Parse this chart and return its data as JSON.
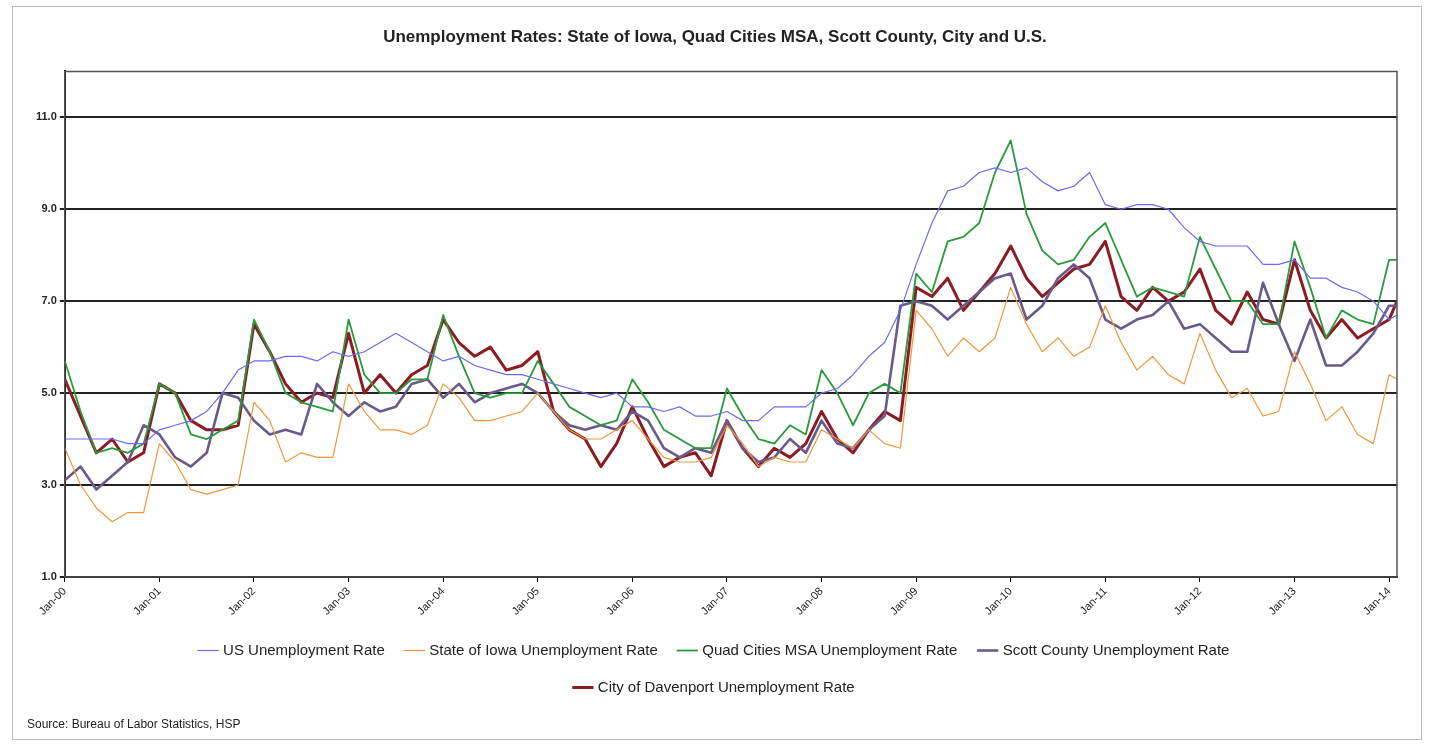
{
  "chart_data": {
    "type": "line",
    "title": "Unemployment Rates: State of Iowa, Quad Cities MSA, Scott County, City and U.S.",
    "annotations": [
      "Source: Bureau of Labor Statistics, HSP"
    ],
    "x": [
      "2000-01",
      "2000-03",
      "2000-05",
      "2000-07",
      "2000-09",
      "2000-11",
      "2001-01",
      "2001-03",
      "2001-05",
      "2001-07",
      "2001-09",
      "2001-11",
      "2002-01",
      "2002-03",
      "2002-05",
      "2002-07",
      "2002-09",
      "2002-11",
      "2003-01",
      "2003-03",
      "2003-05",
      "2003-07",
      "2003-09",
      "2003-11",
      "2004-01",
      "2004-03",
      "2004-05",
      "2004-07",
      "2004-09",
      "2004-11",
      "2005-01",
      "2005-03",
      "2005-05",
      "2005-07",
      "2005-09",
      "2005-11",
      "2006-01",
      "2006-03",
      "2006-05",
      "2006-07",
      "2006-09",
      "2006-11",
      "2007-01",
      "2007-03",
      "2007-05",
      "2007-07",
      "2007-09",
      "2007-11",
      "2008-01",
      "2008-03",
      "2008-05",
      "2008-07",
      "2008-09",
      "2008-11",
      "2009-01",
      "2009-03",
      "2009-05",
      "2009-07",
      "2009-09",
      "2009-11",
      "2010-01",
      "2010-03",
      "2010-05",
      "2010-07",
      "2010-09",
      "2010-11",
      "2011-01",
      "2011-03",
      "2011-05",
      "2011-07",
      "2011-09",
      "2011-11",
      "2012-01",
      "2012-03",
      "2012-05",
      "2012-07",
      "2012-09",
      "2012-11",
      "2013-01",
      "2013-03",
      "2013-05",
      "2013-07",
      "2013-09",
      "2013-11",
      "2014-01",
      "2014-02"
    ],
    "series": [
      {
        "name": "US Unemployment Rate",
        "color": "#6b6bf0",
        "values": [
          4.0,
          4.0,
          4.0,
          4.0,
          3.9,
          3.9,
          4.2,
          4.3,
          4.4,
          4.6,
          5.0,
          5.5,
          5.7,
          5.7,
          5.8,
          5.8,
          5.7,
          5.9,
          5.8,
          5.9,
          6.1,
          6.3,
          6.1,
          5.9,
          5.7,
          5.8,
          5.6,
          5.5,
          5.4,
          5.4,
          5.3,
          5.2,
          5.1,
          5.0,
          4.9,
          5.0,
          4.7,
          4.7,
          4.6,
          4.7,
          4.5,
          4.5,
          4.6,
          4.4,
          4.4,
          4.7,
          4.7,
          4.7,
          5.0,
          5.1,
          5.4,
          5.8,
          6.1,
          6.8,
          7.8,
          8.7,
          9.4,
          9.5,
          9.8,
          9.9,
          9.8,
          9.9,
          9.6,
          9.4,
          9.5,
          9.8,
          9.1,
          9.0,
          9.1,
          9.1,
          9.0,
          8.6,
          8.3,
          8.2,
          8.2,
          8.2,
          7.8,
          7.8,
          7.9,
          7.5,
          7.5,
          7.3,
          7.2,
          7.0,
          6.6,
          6.7
        ]
      },
      {
        "name": "State of Iowa Unemployment Rate",
        "color": "#f0963c",
        "values": [
          3.8,
          3.0,
          2.5,
          2.2,
          2.4,
          2.4,
          3.9,
          3.5,
          2.9,
          2.8,
          2.9,
          3.0,
          4.8,
          4.4,
          3.5,
          3.7,
          3.6,
          3.6,
          5.2,
          4.6,
          4.2,
          4.2,
          4.1,
          4.3,
          5.2,
          4.9,
          4.4,
          4.4,
          4.5,
          4.6,
          5.0,
          4.6,
          4.2,
          4.0,
          4.0,
          4.2,
          4.4,
          4.0,
          3.6,
          3.5,
          3.5,
          3.6,
          4.3,
          3.9,
          3.4,
          3.6,
          3.5,
          3.5,
          4.2,
          4.0,
          3.8,
          4.2,
          3.9,
          3.8,
          6.8,
          6.4,
          5.8,
          6.2,
          5.9,
          6.2,
          7.3,
          6.5,
          5.9,
          6.2,
          5.8,
          6.0,
          6.9,
          6.1,
          5.5,
          5.8,
          5.4,
          5.2,
          6.3,
          5.5,
          4.9,
          5.1,
          4.5,
          4.6,
          5.9,
          5.2,
          4.4,
          4.7,
          4.1,
          3.9,
          5.4,
          5.3
        ]
      },
      {
        "name": "Quad Cities MSA Unemployment Rate",
        "color": "#2a9a3a",
        "values": [
          5.7,
          4.6,
          3.7,
          3.8,
          3.7,
          3.9,
          5.2,
          5.0,
          4.1,
          4.0,
          4.2,
          4.4,
          6.6,
          5.9,
          5.0,
          4.8,
          4.7,
          4.6,
          6.6,
          5.4,
          5.0,
          5.0,
          5.3,
          5.3,
          6.7,
          5.8,
          5.0,
          4.9,
          5.0,
          5.0,
          5.7,
          5.2,
          4.7,
          4.5,
          4.3,
          4.4,
          5.3,
          4.8,
          4.2,
          4.0,
          3.8,
          3.8,
          5.1,
          4.5,
          4.0,
          3.9,
          4.3,
          4.1,
          5.5,
          5.0,
          4.3,
          5.0,
          5.2,
          5.0,
          7.6,
          7.2,
          8.3,
          8.4,
          8.7,
          9.8,
          10.5,
          8.9,
          8.1,
          7.8,
          7.9,
          8.4,
          8.7,
          7.9,
          7.1,
          7.3,
          7.2,
          7.1,
          8.4,
          7.7,
          7.0,
          7.0,
          6.5,
          6.5,
          8.3,
          7.3,
          6.2,
          6.8,
          6.6,
          6.5,
          7.9,
          7.9
        ]
      },
      {
        "name": "Scott County Unemployment Rate",
        "color": "#6a5a8a",
        "values": [
          3.1,
          3.4,
          2.9,
          3.2,
          3.5,
          4.3,
          4.1,
          3.6,
          3.4,
          3.7,
          5.0,
          4.9,
          4.4,
          4.1,
          4.2,
          4.1,
          5.2,
          4.8,
          4.5,
          4.8,
          4.6,
          4.7,
          5.2,
          5.3,
          4.9,
          5.2,
          4.8,
          5.0,
          5.1,
          5.2,
          5.0,
          4.6,
          4.3,
          4.2,
          4.3,
          4.2,
          4.6,
          4.4,
          3.8,
          3.6,
          3.8,
          3.7,
          4.4,
          3.8,
          3.5,
          3.6,
          4.0,
          3.7,
          4.4,
          3.9,
          3.8,
          4.2,
          4.5,
          6.9,
          7.0,
          6.9,
          6.6,
          6.9,
          7.2,
          7.5,
          7.6,
          6.6,
          6.9,
          7.5,
          7.8,
          7.5,
          6.6,
          6.4,
          6.6,
          6.7,
          7.0,
          6.4,
          6.5,
          6.2,
          5.9,
          5.9,
          7.4,
          6.5,
          5.7,
          6.6,
          5.6,
          5.6,
          5.9,
          6.3,
          6.9,
          6.9
        ]
      },
      {
        "name": "City of Davenport Unemployment Rate",
        "color": "#8b1c24",
        "values": [
          5.3,
          4.5,
          3.7,
          4.0,
          3.5,
          3.7,
          5.2,
          5.0,
          4.4,
          4.2,
          4.2,
          4.3,
          6.5,
          5.9,
          5.2,
          4.8,
          5.0,
          4.9,
          6.3,
          5.0,
          5.4,
          5.0,
          5.4,
          5.6,
          6.6,
          6.1,
          5.8,
          6.0,
          5.5,
          5.6,
          5.9,
          4.6,
          4.2,
          4.0,
          3.4,
          3.9,
          4.7,
          4.0,
          3.4,
          3.6,
          3.7,
          3.2,
          4.4,
          3.8,
          3.4,
          3.8,
          3.6,
          3.9,
          4.6,
          4.0,
          3.7,
          4.2,
          4.6,
          4.4,
          7.3,
          7.1,
          7.5,
          6.8,
          7.2,
          7.6,
          8.2,
          7.5,
          7.1,
          7.4,
          7.7,
          7.8,
          8.3,
          7.1,
          6.8,
          7.3,
          7.0,
          7.2,
          7.7,
          6.8,
          6.5,
          7.2,
          6.6,
          6.5,
          7.9,
          6.8,
          6.2,
          6.6,
          6.2,
          6.4,
          6.6,
          7.0
        ]
      }
    ],
    "xlim": [
      "2000-01",
      "2014-02"
    ],
    "xticks": [
      {
        "value": "2000-01",
        "label": "Jan-00"
      },
      {
        "value": "2001-01",
        "label": "Jan-01"
      },
      {
        "value": "2002-01",
        "label": "Jan-02"
      },
      {
        "value": "2003-01",
        "label": "Jan-03"
      },
      {
        "value": "2004-01",
        "label": "Jan-04"
      },
      {
        "value": "2005-01",
        "label": "Jan-05"
      },
      {
        "value": "2006-01",
        "label": "Jan-06"
      },
      {
        "value": "2007-01",
        "label": "Jan-07"
      },
      {
        "value": "2008-01",
        "label": "Jan-08"
      },
      {
        "value": "2009-01",
        "label": "Jan-09"
      },
      {
        "value": "2010-01",
        "label": "Jan-10"
      },
      {
        "value": "2011-01",
        "label": "Jan-11"
      },
      {
        "value": "2012-01",
        "label": "Jan-12"
      },
      {
        "value": "2013-01",
        "label": "Jan-13"
      },
      {
        "value": "2014-01",
        "label": "Jan-14"
      }
    ],
    "ylim": [
      1,
      12
    ],
    "yticks": [
      {
        "value": 1,
        "label": "1.0"
      },
      {
        "value": 3,
        "label": "3.0"
      },
      {
        "value": 5,
        "label": "5.0"
      },
      {
        "value": 7,
        "label": "7.0"
      },
      {
        "value": 9,
        "label": "9.0"
      },
      {
        "value": 11,
        "label": "11.0"
      }
    ],
    "grid": "y",
    "legend": "bottom"
  }
}
